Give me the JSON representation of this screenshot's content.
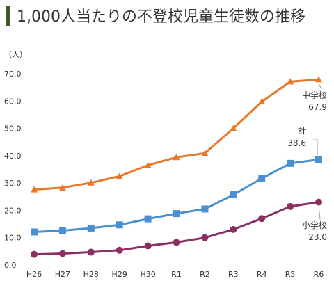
{
  "title": "1,000人当たりの不登校児童生徒数の推移",
  "colors": {
    "title_bar": "#3d5a2a",
    "junior_high": "#e8782a",
    "total": "#4a90d0",
    "elementary": "#8b2e62"
  },
  "chart_data": {
    "type": "line",
    "title": "1,000人当たりの不登校児童生徒数の推移",
    "ylabel": "（人）",
    "xlabel": "",
    "categories": [
      "H26",
      "H27",
      "H28",
      "H29",
      "H30",
      "R1",
      "R2",
      "R3",
      "R4",
      "R5",
      "R6"
    ],
    "ylim": [
      0,
      70
    ],
    "yticks": [
      "70.0",
      "60.0",
      "50.0",
      "40.0",
      "30.0",
      "20.0",
      "10.0",
      "0.0"
    ],
    "grid": false,
    "series": [
      {
        "name": "中学校",
        "marker": "triangle",
        "color": "#e8782a",
        "values": [
          27.6,
          28.3,
          30.1,
          32.5,
          36.5,
          39.4,
          40.9,
          50.0,
          59.8,
          67.1,
          67.9
        ],
        "label_name": "中学校",
        "label_value": "67.9"
      },
      {
        "name": "計",
        "marker": "square",
        "color": "#4a90d0",
        "values": [
          12.1,
          12.6,
          13.5,
          14.7,
          16.9,
          18.8,
          20.5,
          25.7,
          31.7,
          37.2,
          38.6
        ],
        "label_name": "計",
        "label_value": "38.6"
      },
      {
        "name": "小学校",
        "marker": "circle",
        "color": "#8b2e62",
        "values": [
          3.9,
          4.2,
          4.7,
          5.4,
          7.0,
          8.3,
          10.0,
          13.0,
          17.0,
          21.4,
          23.0
        ],
        "label_name": "小学校",
        "label_value": "23.0"
      }
    ]
  }
}
